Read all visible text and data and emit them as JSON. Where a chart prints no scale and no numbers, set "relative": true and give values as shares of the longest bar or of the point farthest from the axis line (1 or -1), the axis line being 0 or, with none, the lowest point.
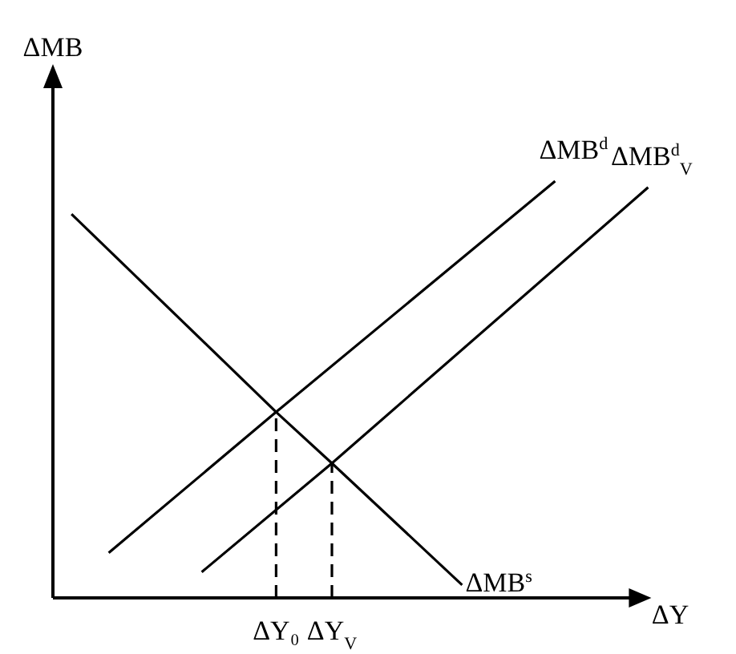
{
  "chart_data": {
    "type": "line",
    "relative": true,
    "xlabel": "ΔY",
    "ylabel": "ΔMB",
    "marker": "none",
    "categories": [
      null,
      null,
      null,
      null,
      null,
      null,
      null,
      null,
      null,
      null,
      null,
      null,
      "ΔY₀",
      null,
      null,
      "ΔY$_{V}$",
      null,
      null,
      null,
      null,
      null,
      null,
      null,
      null,
      null,
      null,
      null,
      null,
      null,
      null,
      null,
      null,
      null
    ],
    "series": [
      {
        "name": "ΔMB$^{s}$",
        "color": "#000000",
        "values": [
          null,
          0.921,
          null,
          null,
          null,
          null,
          null,
          null,
          null,
          null,
          null,
          null,
          0.446,
          null,
          null,
          0.323,
          null,
          null,
          null,
          null,
          null,
          null,
          0.031,
          null,
          null,
          null,
          null,
          null,
          null,
          null,
          null,
          null,
          null
        ]
      },
      {
        "name": "ΔMB$^{d}$",
        "color": "#000000",
        "values": [
          null,
          null,
          null,
          0.108,
          null,
          null,
          null,
          null,
          null,
          null,
          null,
          null,
          0.446,
          null,
          null,
          null,
          null,
          null,
          null,
          null,
          null,
          null,
          null,
          null,
          null,
          null,
          null,
          1,
          null,
          null,
          null,
          null,
          null
        ]
      },
      {
        "name": "ΔMB$^{d}$$_{V}$",
        "color": "#000000",
        "values": [
          null,
          null,
          null,
          null,
          null,
          null,
          null,
          null,
          0.062,
          null,
          null,
          null,
          null,
          null,
          null,
          0.323,
          null,
          null,
          null,
          null,
          null,
          null,
          null,
          null,
          null,
          null,
          null,
          null,
          null,
          null,
          null,
          null,
          0.985
        ]
      },
      {
        "color": "#000000",
        "x": [
          "ΔY₀",
          "ΔY₀"
        ],
        "values": [
          0,
          0.446
        ],
        "line_style": "dashed"
      },
      {
        "color": "#000000",
        "x": [
          "ΔY$_{V}$",
          "ΔY$_{V}$"
        ],
        "values": [
          0,
          0.323
        ],
        "line_style": "dashed"
      }
    ]
  }
}
